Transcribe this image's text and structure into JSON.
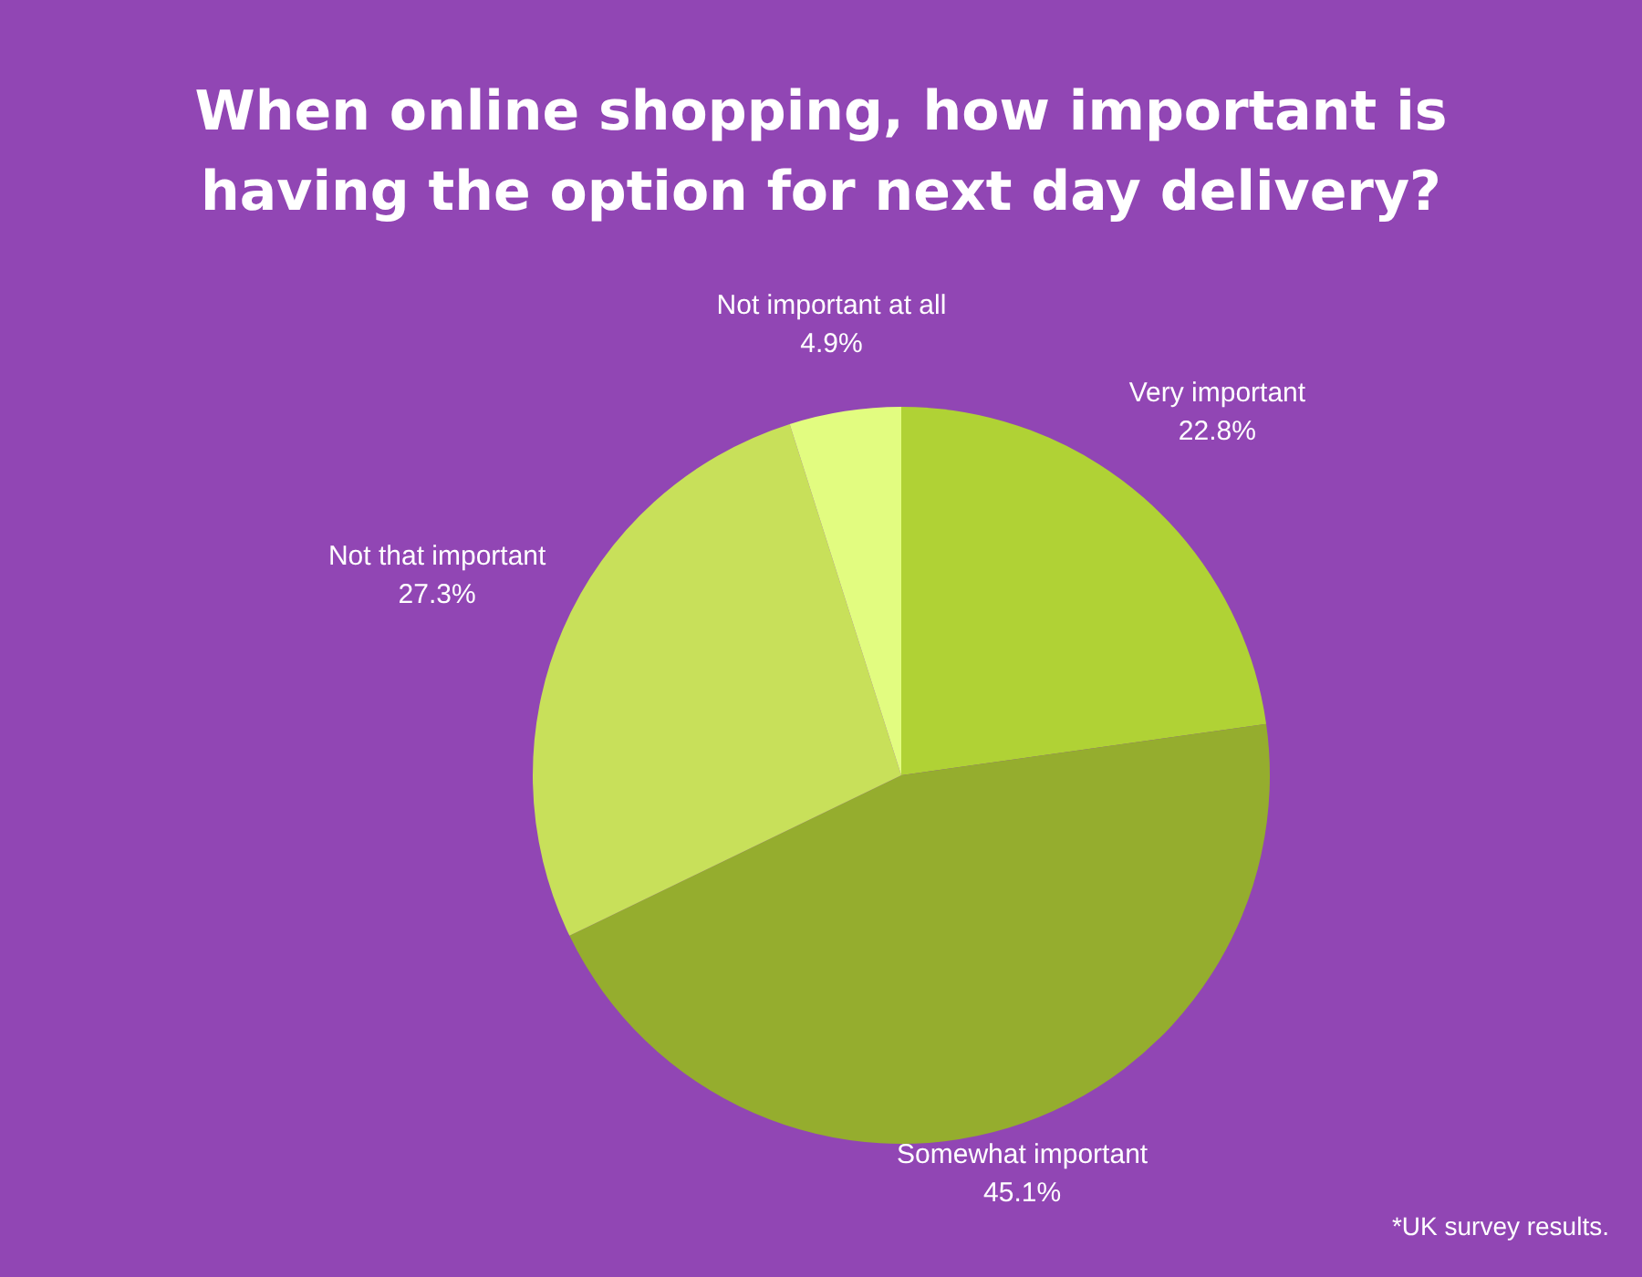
{
  "chart_data": {
    "type": "pie",
    "title": "When online shopping, how important is having the option for next day delivery?",
    "categories": [
      "Very important",
      "Somewhat important",
      "Not that important",
      "Not important at all"
    ],
    "values": [
      22.8,
      45.1,
      27.3,
      4.9
    ],
    "colors": [
      "#b0d235",
      "#95ad2e",
      "#c8e05a",
      "#e2fc80"
    ],
    "value_labels": [
      "22.8%",
      "45.1%",
      "27.3%",
      "4.9%"
    ],
    "legend": false,
    "annotations": [
      "*UK survey results."
    ]
  }
}
